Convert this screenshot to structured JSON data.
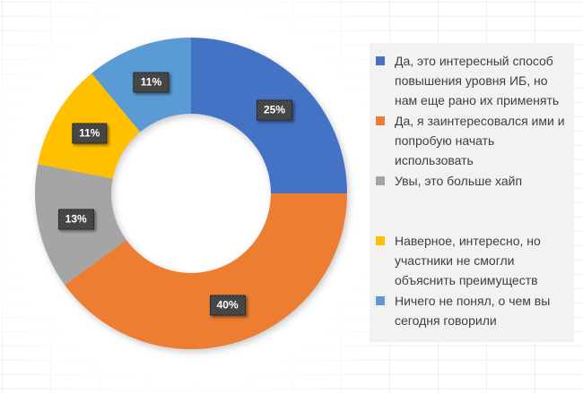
{
  "chart_data": {
    "type": "pie",
    "subtype": "donut",
    "title": "",
    "categories": [
      "Да, это интересный способ повышения уровня ИБ, но нам еще рано их применять",
      "Да, я заинтересовался ими и попробую начать использовать",
      "Увы, это больше хайп",
      "Наверное, интересно, но участники не смогли объяснить преимуществ",
      "Ничего не понял, о чем вы сегодня говорили"
    ],
    "values": [
      25,
      40,
      13,
      11,
      11
    ],
    "data_labels": [
      "25%",
      "40%",
      "13%",
      "11%",
      "11%"
    ],
    "colors": [
      "#4472C4",
      "#ED7D31",
      "#A5A5A5",
      "#FFC000",
      "#5B9BD5"
    ],
    "start_angle_deg": 0,
    "direction": "clockwise",
    "inner_radius_ratio": 0.51,
    "legend_position": "right",
    "grid": false
  },
  "styles": {
    "label_box_bg": "#3B3B3B",
    "label_text_color": "#FFFFFF",
    "legend_bg": "#F2F2F2",
    "legend_text_color": "#404040",
    "grid_line_color": "#F1EEF0"
  }
}
